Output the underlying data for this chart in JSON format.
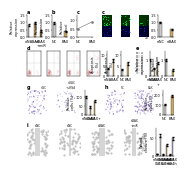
{
  "background": "#ffffff",
  "lfs": 3.5,
  "tfs": 2.5,
  "bw": 0.28,
  "row1": {
    "a": {
      "bars": [
        0.85,
        0.95,
        0.42
      ],
      "colors": [
        "#c8c8c8",
        "#c8a86a",
        "#c8a86a"
      ],
      "err": [
        0.06,
        0.07,
        0.05
      ],
      "ylim": [
        0,
        1.5
      ]
    },
    "b": {
      "bars": [
        0.95,
        0.4
      ],
      "colors": [
        "#c8c8c8",
        "#c8a86a"
      ],
      "err": [
        0.07,
        0.05
      ],
      "ylim": [
        0,
        1.5
      ]
    },
    "c_scatter": {
      "x": [
        0,
        1
      ],
      "y": [
        0.5,
        0.9
      ],
      "ylim": [
        0,
        1.3
      ]
    },
    "fluor_bar": {
      "bars": [
        1.0,
        0.55
      ],
      "colors": [
        "#c8c8c8",
        "#c8a86a"
      ],
      "err": [
        0.06,
        0.04
      ],
      "ylim": [
        0,
        1.5
      ]
    }
  },
  "row2": {
    "apop_bar1": {
      "bars": [
        3.5,
        7.5
      ],
      "colors": [
        "#c8c8c8",
        "#c8a86a"
      ],
      "err": [
        0.3,
        0.6
      ],
      "ylim": [
        0,
        12
      ]
    },
    "apop_bar2": {
      "bars": [
        3.0,
        6.0
      ],
      "colors": [
        "#c8c8c8",
        "#c8a86a"
      ],
      "err": [
        0.3,
        0.5
      ],
      "ylim": [
        0,
        12
      ]
    },
    "wb_bar1": {
      "bars": [
        1.0,
        0.48,
        0.82
      ],
      "colors": [
        "#c8c8c8",
        "#c8a86a",
        "#c8a86a"
      ],
      "err": [
        0.06,
        0.04,
        0.05
      ],
      "ylim": [
        0,
        1.6
      ]
    },
    "wb_bar2": {
      "bars": [
        1.0,
        0.38
      ],
      "colors": [
        "#c8c8c8",
        "#c8a86a"
      ],
      "err": [
        0.06,
        0.04
      ],
      "ylim": [
        0,
        1.6
      ]
    }
  },
  "row3": {
    "inv_bar1": {
      "bars": [
        100,
        42,
        78
      ],
      "colors": [
        "#c8c8c8",
        "#c8a86a",
        "#c8a86a"
      ],
      "err": [
        5,
        4,
        6
      ],
      "ylim": [
        0,
        140
      ]
    },
    "inv_bar2": {
      "bars": [
        100,
        195
      ],
      "colors": [
        "#c8c8c8",
        "#c8a86a"
      ],
      "err": [
        5,
        10
      ],
      "ylim": [
        0,
        260
      ]
    }
  },
  "row4": {
    "wh_bar": {
      "bars": [
        5,
        58,
        4,
        32,
        3,
        50
      ],
      "colors": [
        "#c8c8c8",
        "#c8c8c8",
        "#c8a86a",
        "#c8a86a",
        "#b0b0d8",
        "#b0b0d8"
      ],
      "err": [
        1,
        4,
        1,
        3,
        1,
        4
      ],
      "ylim": [
        0,
        80
      ]
    }
  },
  "flow_bg": "#ffffff",
  "fluor_green": "#003300",
  "fluor_blue": "#000033",
  "wb_bg": "#dddddd",
  "inv_bg": "#d8d0e8",
  "wh_bg": "#666666"
}
